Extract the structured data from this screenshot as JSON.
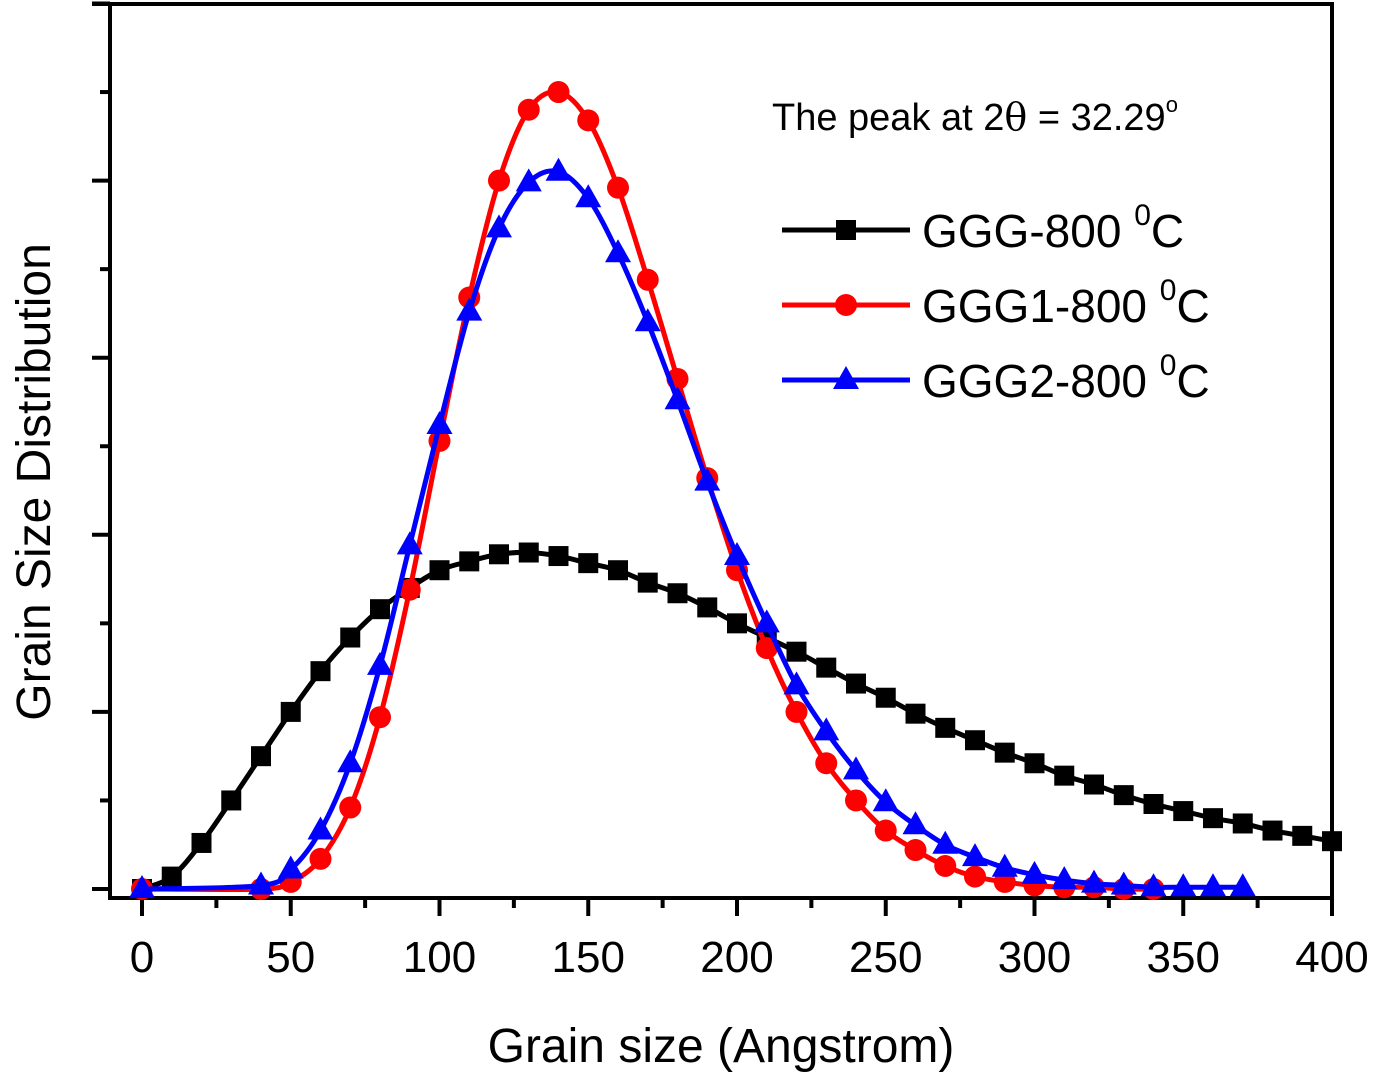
{
  "chart_data": {
    "type": "line",
    "title": "",
    "xlabel": "Grain size (Angstrom)",
    "ylabel": "Grain Size Distribution",
    "xlim": [
      0,
      400
    ],
    "ylim": [
      0,
      5
    ],
    "y_units": "arbitrary (no tick labels shown)",
    "xticks": [
      0,
      50,
      100,
      150,
      200,
      250,
      300,
      350,
      400
    ],
    "xtick_labels": [
      "0",
      "50",
      "100",
      "150",
      "200",
      "250",
      "300",
      "350",
      "400"
    ],
    "x_minor_step": 25,
    "y_major_step": 1,
    "y_minor_step": 0.5,
    "grid": false,
    "annotation": {
      "text_prefix": "The peak at 2",
      "theta": "θ",
      "text_suffix": " = 32.29",
      "degree": "o",
      "placement": "top-right"
    },
    "legend": {
      "placement": "top-right",
      "entries": [
        {
          "label": "GGG-800 ",
          "sup": "0",
          "unit": "C",
          "color": "#000000",
          "marker": "square"
        },
        {
          "label": "GGG1-800 ",
          "sup": "0",
          "unit": "C",
          "color": "#ff0000",
          "marker": "circle"
        },
        {
          "label": "GGG2-800 ",
          "sup": "0",
          "unit": "C",
          "color": "#0000ff",
          "marker": "triangle"
        }
      ]
    },
    "series": [
      {
        "name": "GGG-800 0C",
        "color": "#000000",
        "marker": "square",
        "x": [
          0,
          10,
          20,
          30,
          40,
          50,
          60,
          70,
          80,
          90,
          100,
          110,
          120,
          130,
          140,
          150,
          160,
          170,
          180,
          190,
          200,
          210,
          220,
          230,
          240,
          250,
          260,
          270,
          280,
          290,
          300,
          310,
          320,
          330,
          340,
          350,
          360,
          370,
          380,
          390,
          400
        ],
        "y": [
          0,
          0.07,
          0.26,
          0.5,
          0.75,
          1.0,
          1.23,
          1.42,
          1.58,
          1.7,
          1.8,
          1.85,
          1.89,
          1.9,
          1.88,
          1.84,
          1.8,
          1.73,
          1.67,
          1.59,
          1.5,
          1.42,
          1.34,
          1.25,
          1.16,
          1.08,
          0.99,
          0.91,
          0.84,
          0.77,
          0.71,
          0.64,
          0.59,
          0.53,
          0.48,
          0.44,
          0.4,
          0.37,
          0.33,
          0.3,
          0.27
        ]
      },
      {
        "name": "GGG1-800 0C",
        "color": "#ff0000",
        "marker": "circle",
        "x": [
          0,
          40,
          50,
          60,
          70,
          80,
          90,
          100,
          110,
          120,
          130,
          140,
          150,
          160,
          170,
          180,
          190,
          200,
          210,
          220,
          230,
          240,
          250,
          260,
          270,
          280,
          290,
          300,
          310,
          320,
          330,
          340
        ],
        "y": [
          0,
          0,
          0.04,
          0.17,
          0.46,
          0.97,
          1.69,
          2.53,
          3.34,
          4.0,
          4.4,
          4.5,
          4.34,
          3.96,
          3.44,
          2.88,
          2.32,
          1.8,
          1.36,
          1.0,
          0.71,
          0.5,
          0.33,
          0.22,
          0.13,
          0.07,
          0.04,
          0.02,
          0.01,
          0.01,
          0,
          0
        ]
      },
      {
        "name": "GGG2-800 0C",
        "color": "#0000ff",
        "marker": "triangle",
        "x": [
          0,
          40,
          50,
          60,
          70,
          80,
          90,
          100,
          110,
          120,
          130,
          140,
          150,
          160,
          170,
          180,
          190,
          200,
          210,
          220,
          230,
          240,
          250,
          260,
          270,
          280,
          290,
          300,
          310,
          320,
          330,
          340,
          350,
          360,
          370
        ],
        "y": [
          0,
          0.02,
          0.11,
          0.33,
          0.71,
          1.26,
          1.94,
          2.62,
          3.26,
          3.73,
          3.99,
          4.05,
          3.9,
          3.59,
          3.2,
          2.76,
          2.3,
          1.88,
          1.5,
          1.15,
          0.89,
          0.67,
          0.49,
          0.36,
          0.25,
          0.18,
          0.12,
          0.08,
          0.05,
          0.03,
          0.02,
          0.01,
          0.01,
          0.01,
          0.01
        ]
      }
    ]
  }
}
